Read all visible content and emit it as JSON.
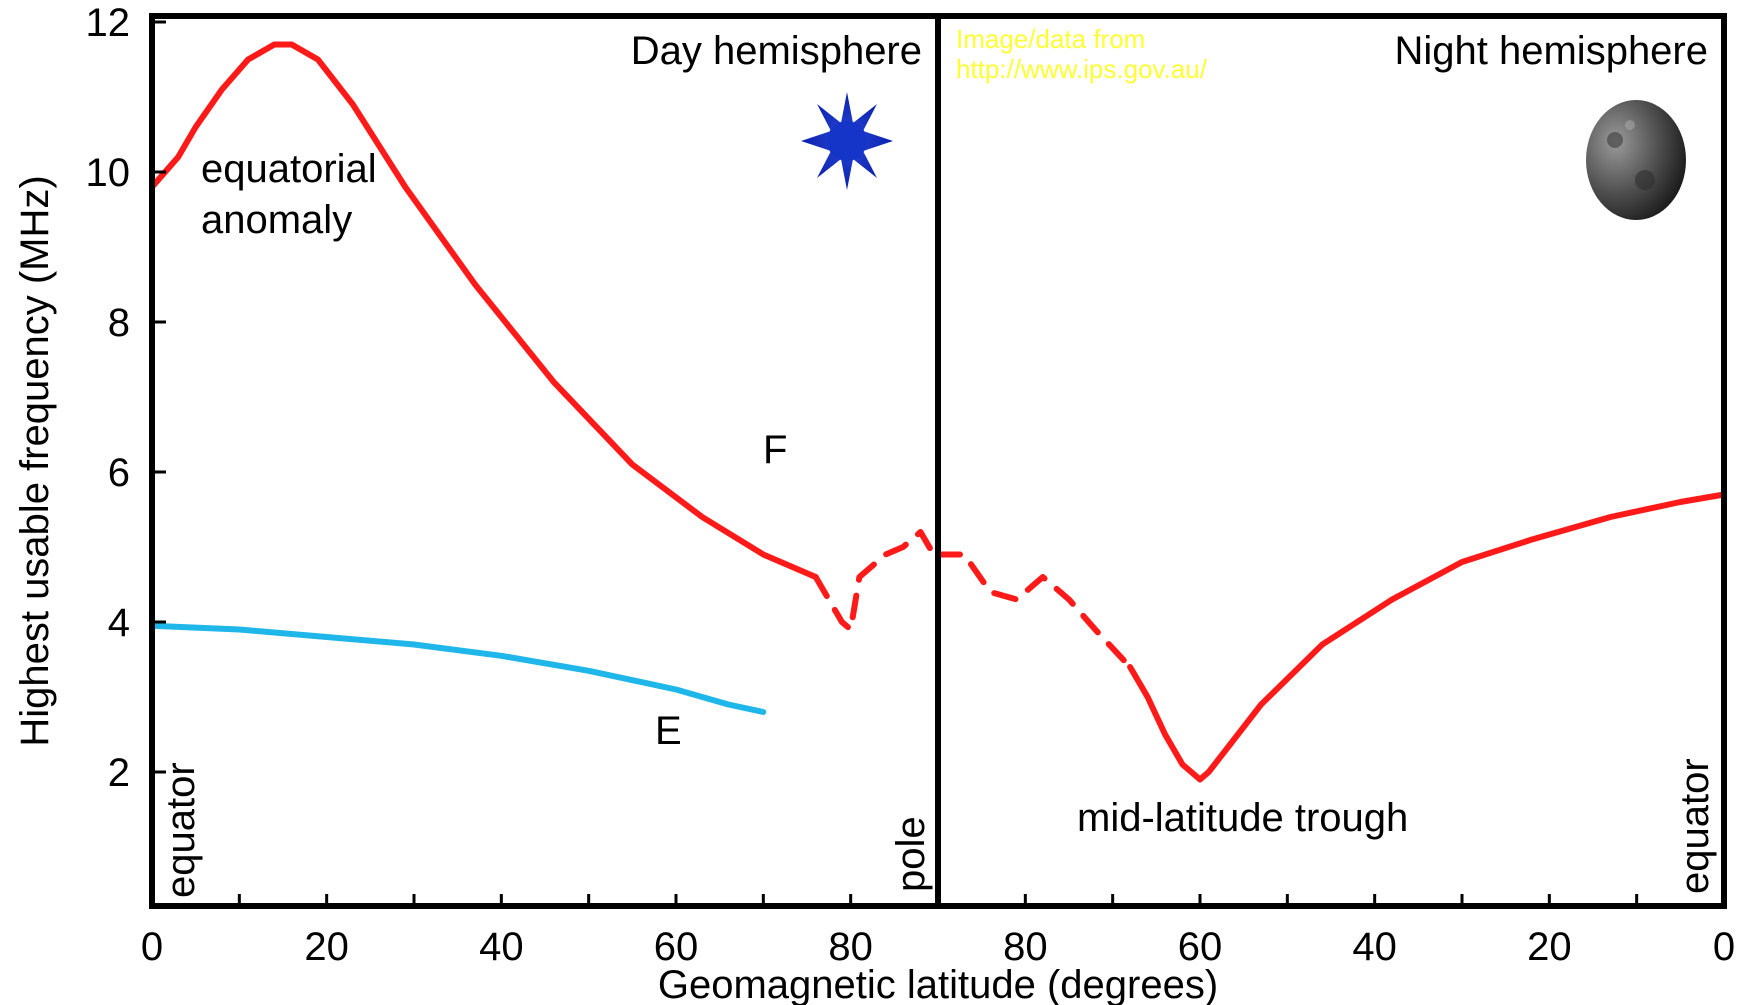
{
  "chart_data": {
    "type": "line",
    "xlabel": "Geomagnetic latitude (degrees)",
    "ylabel": "Highest usable frequency (MHz)",
    "ylim": [
      0,
      12
    ],
    "yticks": [
      "2",
      "4",
      "6",
      "8",
      "10",
      "12"
    ],
    "panels": {
      "day": {
        "title": "Day hemisphere",
        "xlim": [
          0,
          90
        ],
        "xticks": [
          "0",
          "20",
          "40",
          "60",
          "80"
        ]
      },
      "night": {
        "title": "Night hemisphere",
        "xlim": [
          90,
          0
        ],
        "xticks": [
          "80",
          "60",
          "40",
          "20",
          "0"
        ]
      }
    },
    "grid": false,
    "series": [
      {
        "name": "F",
        "color": "#ff1a1a",
        "segments": [
          {
            "panel": "day",
            "style": "solid",
            "x": [
              0,
              3,
              5,
              8,
              11,
              14,
              16,
              19,
              23,
              29,
              37,
              46,
              55,
              63,
              70,
              76
            ],
            "y": [
              9.8,
              10.2,
              10.6,
              11.1,
              11.5,
              11.7,
              11.7,
              11.5,
              10.9,
              9.8,
              8.5,
              7.2,
              6.1,
              5.4,
              4.9,
              4.6
            ]
          },
          {
            "panel": "day",
            "style": "dashed",
            "x": [
              76,
              79,
              80,
              81,
              84,
              86,
              88,
              90
            ],
            "y": [
              4.6,
              4.0,
              3.9,
              4.6,
              4.9,
              5.0,
              5.2,
              4.8
            ]
          },
          {
            "panel": "night",
            "style": "dashed",
            "x": [
              90,
              87,
              84,
              81,
              78,
              75,
              72,
              68
            ],
            "y": [
              4.9,
              4.9,
              4.4,
              4.3,
              4.6,
              4.3,
              3.9,
              3.4
            ]
          },
          {
            "panel": "night",
            "style": "solid",
            "x": [
              68,
              66,
              64,
              62,
              61,
              60,
              59,
              57,
              53,
              46,
              38,
              30,
              22,
              13,
              5,
              0
            ],
            "y": [
              3.4,
              3.0,
              2.5,
              2.1,
              2.0,
              1.9,
              2.0,
              2.3,
              2.9,
              3.7,
              4.3,
              4.8,
              5.1,
              5.4,
              5.6,
              5.7
            ]
          }
        ]
      },
      {
        "name": "E",
        "color": "#1fb6ea",
        "segments": [
          {
            "panel": "day",
            "style": "solid",
            "x": [
              0,
              10,
              20,
              30,
              40,
              50,
              60,
              66,
              70
            ],
            "y": [
              3.95,
              3.9,
              3.8,
              3.7,
              3.55,
              3.35,
              3.1,
              2.9,
              2.8
            ]
          }
        ]
      }
    ],
    "annotations": {
      "equatorial_anomaly_line1": "equatorial",
      "equatorial_anomaly_line2": "anomaly",
      "f_label": "F",
      "e_label": "E",
      "trough": "mid-latitude trough",
      "equator_left": "equator",
      "pole": "pole",
      "equator_right": "equator"
    },
    "credit_line1": "Image/data from",
    "credit_line2": "http://www.ips.gov.au/",
    "credit_color": "#ffff33",
    "icons": [
      "sun-icon",
      "moon-icon"
    ]
  }
}
